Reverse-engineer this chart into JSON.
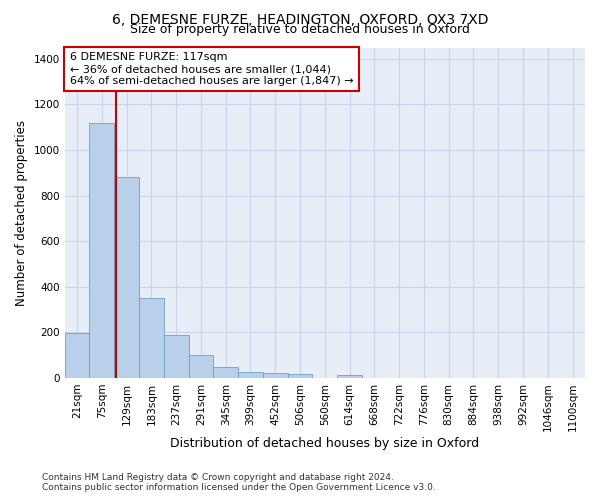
{
  "title": "6, DEMESNE FURZE, HEADINGTON, OXFORD, OX3 7XD",
  "subtitle": "Size of property relative to detached houses in Oxford",
  "xlabel": "Distribution of detached houses by size in Oxford",
  "ylabel": "Number of detached properties",
  "bar_labels": [
    "21sqm",
    "75sqm",
    "129sqm",
    "183sqm",
    "237sqm",
    "291sqm",
    "345sqm",
    "399sqm",
    "452sqm",
    "506sqm",
    "560sqm",
    "614sqm",
    "668sqm",
    "722sqm",
    "776sqm",
    "830sqm",
    "884sqm",
    "938sqm",
    "992sqm",
    "1046sqm",
    "1100sqm"
  ],
  "bar_values": [
    196,
    1120,
    880,
    350,
    190,
    100,
    50,
    25,
    20,
    18,
    0,
    15,
    0,
    0,
    0,
    0,
    0,
    0,
    0,
    0,
    0
  ],
  "bar_color": "#b8d0ea",
  "bar_edgecolor": "#6b9fc8",
  "property_line_x": 1.57,
  "annotation_text": "6 DEMESNE FURZE: 117sqm\n← 36% of detached houses are smaller (1,044)\n64% of semi-detached houses are larger (1,847) →",
  "annotation_box_color": "#ffffff",
  "annotation_box_edgecolor": "#cc0000",
  "vline_color": "#cc0000",
  "ylim": [
    0,
    1450
  ],
  "yticks": [
    0,
    200,
    400,
    600,
    800,
    1000,
    1200,
    1400
  ],
  "grid_color": "#c8d4e8",
  "background_color": "#e8eef8",
  "footer_text": "Contains HM Land Registry data © Crown copyright and database right 2024.\nContains public sector information licensed under the Open Government Licence v3.0.",
  "title_fontsize": 10,
  "subtitle_fontsize": 9,
  "xlabel_fontsize": 9,
  "ylabel_fontsize": 8.5,
  "tick_fontsize": 7.5,
  "annotation_fontsize": 8,
  "footer_fontsize": 6.5
}
